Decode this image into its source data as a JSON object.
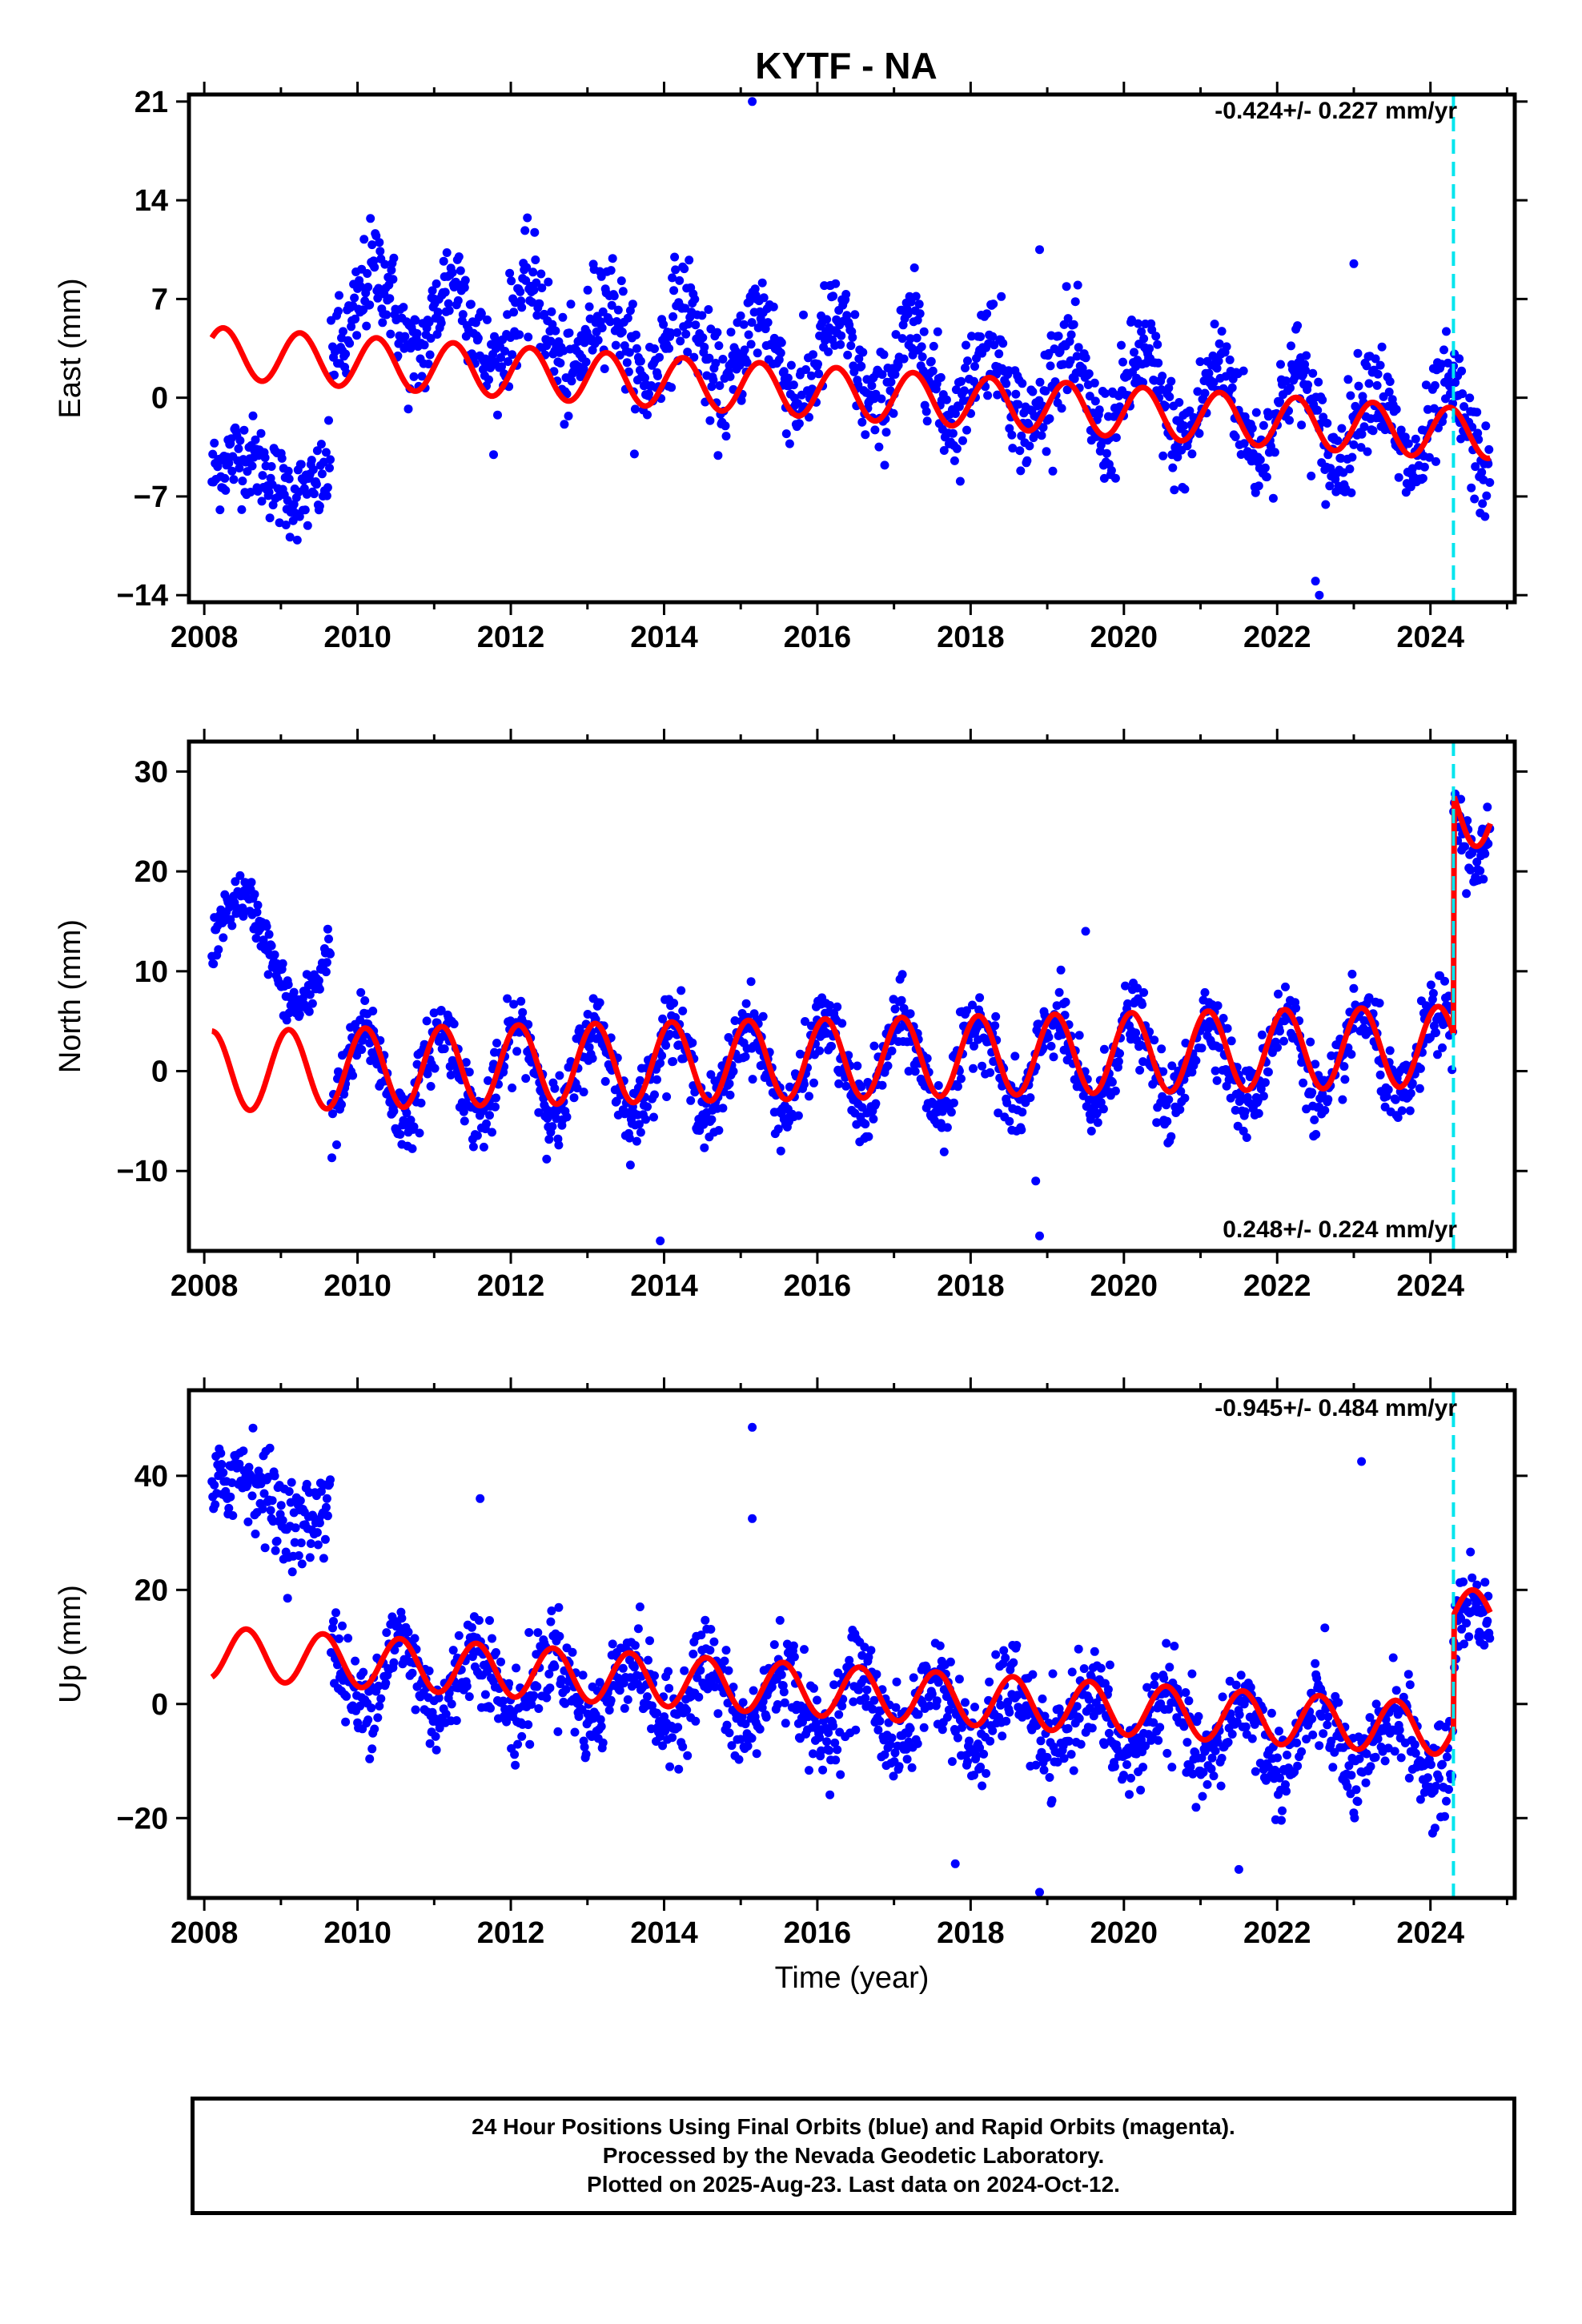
{
  "title": "KYTF - NA",
  "colors": {
    "data": "#0000ff",
    "model": "#ff0000",
    "offset_line": "#00e5ee",
    "frame": "#000000"
  },
  "caption": {
    "line1": "24 Hour Positions Using Final Orbits (blue) and Rapid Orbits (magenta).",
    "line2": "Processed by the Nevada Geodetic Laboratory.",
    "line3": "Plotted on 2025-Aug-23. Last data on 2024-Oct-12."
  },
  "chart_data": [
    {
      "type": "scatter",
      "name": "east",
      "title": "KYTF - NA",
      "xlabel": "",
      "ylabel": "East (mm)",
      "xlim": [
        2007.8,
        2025.1
      ],
      "ylim": [
        -14.5,
        21.5
      ],
      "xticks": [
        2008,
        2010,
        2012,
        2014,
        2016,
        2018,
        2020,
        2022,
        2024
      ],
      "yticks": [
        -14,
        -7,
        0,
        7,
        14,
        21
      ],
      "rate_label": "-0.424+/- 0.227 mm/yr",
      "offset_year": 2024.3,
      "data_start": 2008.1,
      "data_end": 2024.78,
      "gap": [
        2009.0,
        2009.0
      ],
      "early": {
        "end": 2009.65,
        "level": -5.5,
        "amp": 1.5,
        "noise": 1.5
      },
      "later": {
        "start_level": 6.5,
        "end_level": -2.5,
        "amp": 3.0,
        "phase": 0.0,
        "noise": 1.8,
        "jump": 0
      },
      "model": {
        "start_level": 3.2,
        "end_level": -2.5,
        "amp": 1.8,
        "phase": 0.0,
        "jump": 0,
        "end_after_jump": 0
      },
      "outliers": [
        [
          2015.15,
          21.0
        ],
        [
          2022.55,
          -14.0
        ],
        [
          2018.9,
          10.5
        ],
        [
          2023.0,
          9.5
        ],
        [
          2022.5,
          -13.0
        ]
      ]
    },
    {
      "type": "scatter",
      "name": "north",
      "xlabel": "",
      "ylabel": "North (mm)",
      "xlim": [
        2007.8,
        2025.1
      ],
      "ylim": [
        -18,
        33
      ],
      "xticks": [
        2008,
        2010,
        2012,
        2014,
        2016,
        2018,
        2020,
        2022,
        2024
      ],
      "yticks": [
        -10,
        0,
        10,
        20,
        30
      ],
      "rate_label": "0.248+/- 0.224 mm/yr",
      "offset_year": 2024.3,
      "data_start": 2008.1,
      "data_end": 2024.78,
      "early": {
        "end": 2009.65,
        "level": 12.0,
        "amp": 5.5,
        "noise": 1.2
      },
      "later": {
        "start_level": -0.5,
        "end_level": 1.5,
        "amp": 4.5,
        "phase": 0.15,
        "noise": 1.8,
        "jump": 24
      },
      "model": {
        "start_level": 0.0,
        "end_level": 2.5,
        "amp": 4.0,
        "phase": 0.15,
        "jump": 24,
        "end_after_jump": 24
      },
      "outliers": [
        [
          2013.95,
          -17.0
        ],
        [
          2018.9,
          -16.5
        ],
        [
          2019.5,
          14.0
        ],
        [
          2018.85,
          -11.0
        ]
      ]
    },
    {
      "type": "scatter",
      "name": "up",
      "xlabel": "Time (year)",
      "ylabel": "Up (mm)",
      "xlim": [
        2007.8,
        2025.1
      ],
      "ylim": [
        -34,
        55
      ],
      "xticks": [
        2008,
        2010,
        2012,
        2014,
        2016,
        2018,
        2020,
        2022,
        2024
      ],
      "yticks": [
        -20,
        0,
        20,
        40
      ],
      "rate_label": "-0.945+/- 0.484 mm/yr",
      "offset_year": 2024.3,
      "data_start": 2008.1,
      "data_end": 2024.78,
      "early": {
        "end": 2009.65,
        "level": 36.0,
        "amp": 5.0,
        "noise": 4.0
      },
      "later": {
        "start_level": 6.0,
        "end_level": -8.0,
        "amp": 6.0,
        "phase": 0.7,
        "noise": 4.0,
        "jump": 20
      },
      "model": {
        "start_level": 9.0,
        "end_level": -4.5,
        "amp": 4.5,
        "phase": 0.7,
        "jump": 20,
        "end_after_jump": 18
      },
      "outliers": [
        [
          2015.15,
          48.5
        ],
        [
          2015.15,
          32.5
        ],
        [
          2023.1,
          42.5
        ],
        [
          2018.9,
          -33.0
        ],
        [
          2017.8,
          -28.0
        ],
        [
          2021.5,
          -29.0
        ],
        [
          2011.6,
          36.0
        ]
      ]
    }
  ]
}
